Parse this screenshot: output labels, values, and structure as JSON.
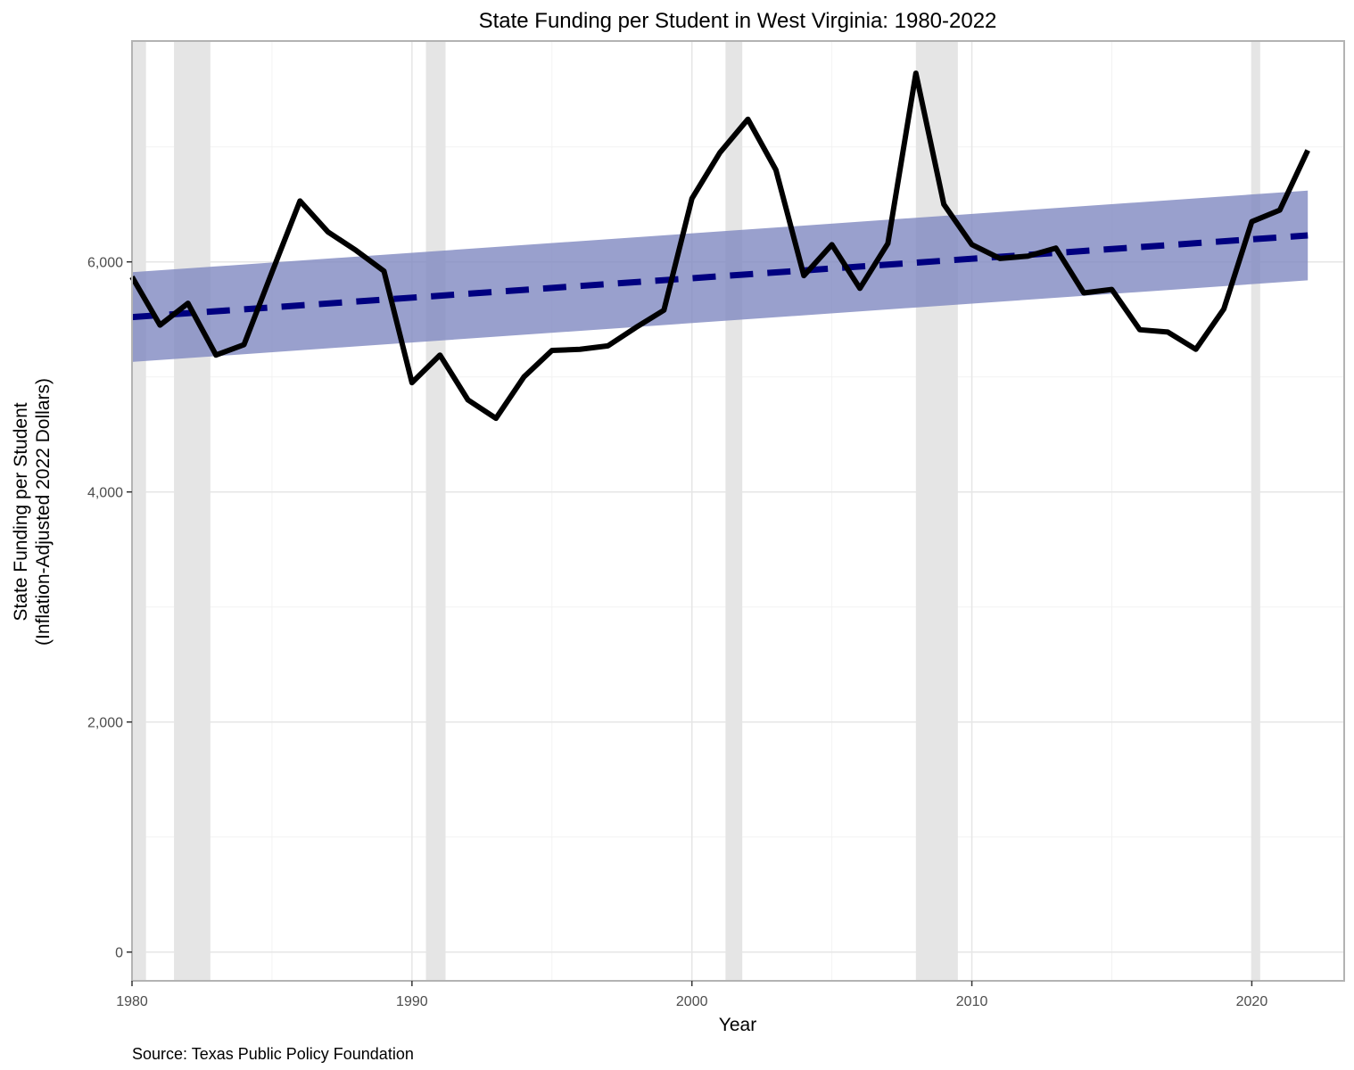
{
  "chart_data": {
    "type": "line",
    "title": "State Funding per Student in West Virginia: 1980-2022",
    "xlabel": "Year",
    "ylabel_line1": "State Funding per Student",
    "ylabel_line2": "(Inflation-Adjusted 2022 Dollars)",
    "caption": "Source: Texas Public Policy Foundation",
    "xlim": [
      1980,
      2023.3
    ],
    "ylim": [
      -250,
      7920
    ],
    "x_ticks": [
      1980,
      1990,
      2000,
      2010,
      2020
    ],
    "x_tick_labels": [
      "1980",
      "1990",
      "2000",
      "2010",
      "2020"
    ],
    "y_ticks": [
      0,
      2000,
      4000,
      6000
    ],
    "y_tick_labels": [
      "0",
      "2,000",
      "4,000",
      "6,000"
    ],
    "grid": true,
    "recession_bands": [
      [
        1980.0,
        1980.5
      ],
      [
        1981.5,
        1982.8
      ],
      [
        1990.5,
        1991.2
      ],
      [
        2001.2,
        2001.8
      ],
      [
        2008.0,
        2009.5
      ],
      [
        2020.0,
        2020.3
      ]
    ],
    "series": [
      {
        "style": "solid",
        "color": "#000000",
        "x": [
          1980,
          1981,
          1982,
          1983,
          1984,
          1985,
          1986,
          1987,
          1988,
          1989,
          1990,
          1991,
          1992,
          1993,
          1994,
          1995,
          1996,
          1997,
          1998,
          1999,
          2000,
          2001,
          2002,
          2003,
          2004,
          2005,
          2006,
          2007,
          2008,
          2009,
          2010,
          2011,
          2012,
          2013,
          2014,
          2015,
          2016,
          2017,
          2018,
          2019,
          2020,
          2021,
          2022
        ],
        "values": [
          5870,
          5450,
          5640,
          5190,
          5280,
          5910,
          6530,
          6260,
          6100,
          5920,
          4950,
          5190,
          4800,
          4640,
          5000,
          5230,
          5240,
          5270,
          5430,
          5580,
          6550,
          6950,
          7240,
          6800,
          5880,
          6150,
          5770,
          6160,
          7640,
          6500,
          6150,
          6030,
          6050,
          6120,
          5730,
          5760,
          5410,
          5390,
          5240,
          5590,
          6350,
          6450,
          6970
        ]
      },
      {
        "style": "dashed",
        "color": "#000080",
        "x": [
          1980,
          2022
        ],
        "values": [
          5520,
          6230
        ]
      }
    ],
    "band": {
      "color": "#8088c0",
      "x": [
        1980,
        2022
      ],
      "lower": [
        5130,
        5840
      ],
      "upper": [
        5910,
        6620
      ]
    }
  }
}
